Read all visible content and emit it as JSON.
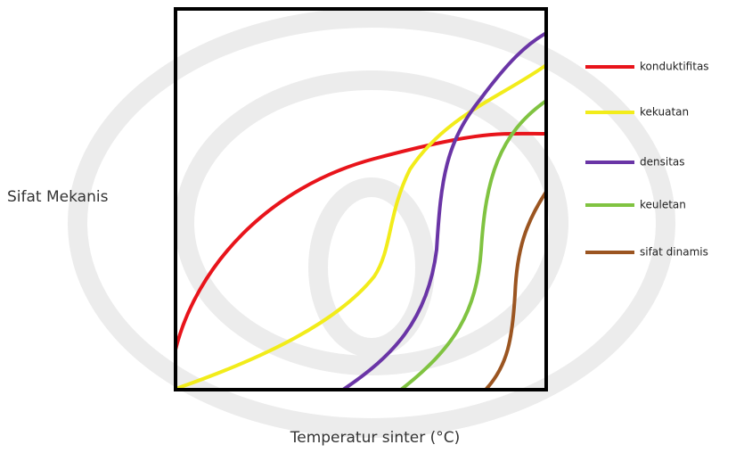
{
  "y_label": "Sifat Mekanis",
  "x_label": "Temperatur sinter (°C)",
  "legend": [
    {
      "label": "konduktifitas",
      "color": "#e8141b"
    },
    {
      "label": "kekuatan",
      "color": "#f2ec1a"
    },
    {
      "label": "densitas",
      "color": "#6a35a6"
    },
    {
      "label": "keuletan",
      "color": "#80c341"
    },
    {
      "label": "sifat dinamis",
      "color": "#9b5521"
    }
  ]
}
